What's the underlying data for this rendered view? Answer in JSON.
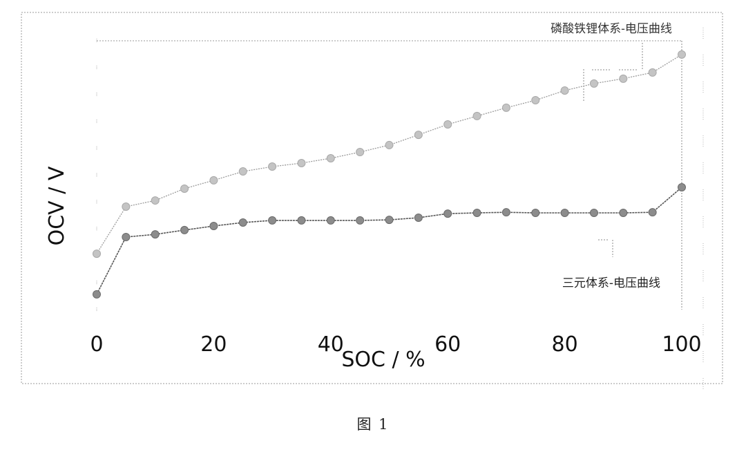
{
  "figure": {
    "caption": "图 1"
  },
  "chart_data": {
    "type": "line",
    "title": "",
    "xlabel": "SOC / %",
    "ylabel": "OCV / V",
    "x": [
      0,
      5,
      10,
      15,
      20,
      25,
      30,
      35,
      40,
      45,
      50,
      55,
      60,
      65,
      70,
      75,
      80,
      85,
      90,
      95,
      100
    ],
    "xticks": [
      "0",
      "20",
      "40",
      "60",
      "80",
      "100"
    ],
    "xlim": [
      0,
      100
    ],
    "ylim": [
      0,
      10
    ],
    "y_units_note": "relative (no numeric y tick labels shown)",
    "grid": false,
    "series": [
      {
        "name": "磷酸铁锂体系-电压曲线",
        "color": "#9a9a9a",
        "values": [
          2.08,
          3.83,
          4.06,
          4.5,
          4.81,
          5.14,
          5.32,
          5.45,
          5.63,
          5.86,
          6.12,
          6.5,
          6.89,
          7.2,
          7.51,
          7.79,
          8.15,
          8.41,
          8.59,
          8.82,
          9.49
        ]
      },
      {
        "name": "三元体系-电压曲线",
        "color": "#555555",
        "values": [
          0.57,
          2.7,
          2.8,
          2.96,
          3.11,
          3.24,
          3.32,
          3.32,
          3.32,
          3.32,
          3.34,
          3.42,
          3.57,
          3.6,
          3.62,
          3.6,
          3.6,
          3.6,
          3.6,
          3.62,
          4.55
        ]
      }
    ],
    "annotations": [
      {
        "text": "磷酸铁锂体系-电压曲线",
        "position": "top-right, above upper curve"
      },
      {
        "text": "三元体系-电压曲线",
        "position": "lower-right, below lower curve"
      }
    ],
    "legend": "none (inline labels)"
  }
}
